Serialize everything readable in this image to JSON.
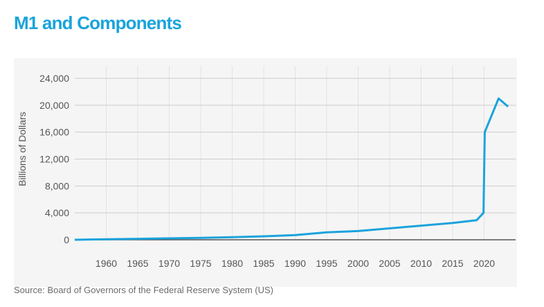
{
  "title": "M1 and Components",
  "source": "Source: Board of Governors of the Federal Reserve System (US)",
  "colors": {
    "title": "#1aa3dc",
    "line": "#1aa3dc",
    "plot_bg": "#f5f5f5",
    "grid": "#cccccc",
    "zero_axis": "#555555"
  },
  "chart_data": {
    "type": "line",
    "title": "M1 and Components",
    "xlabel": "",
    "ylabel": "Billions of Dollars",
    "xlim": [
      1955,
      2025
    ],
    "ylim": [
      0,
      24000
    ],
    "grid": true,
    "y_ticks": [
      0,
      4000,
      8000,
      12000,
      16000,
      20000,
      24000
    ],
    "y_tick_labels": [
      "0",
      "4,000",
      "8,000",
      "12,000",
      "16,000",
      "20,000",
      "24,000"
    ],
    "x_ticks": [
      1960,
      1965,
      1970,
      1975,
      1980,
      1985,
      1990,
      1995,
      2000,
      2005,
      2010,
      2015,
      2020
    ],
    "x_tick_labels": [
      "1960",
      "1965",
      "1970",
      "1975",
      "1980",
      "1985",
      "1990",
      "1995",
      "2000",
      "2005",
      "2010",
      "2015",
      "2020"
    ],
    "series": [
      {
        "x": [
          1955,
          1960,
          1965,
          1970,
          1975,
          1980,
          1985,
          1990,
          1995,
          2000,
          2005,
          2010,
          2015,
          2018.8,
          2019.9,
          2020.0,
          2020.1,
          2022.3,
          2023.8
        ],
        "y": [
          0,
          80,
          140,
          220,
          280,
          380,
          520,
          700,
          1100,
          1300,
          1700,
          2100,
          2500,
          2900,
          4000,
          10000,
          16000,
          21000,
          19800
        ]
      }
    ]
  }
}
